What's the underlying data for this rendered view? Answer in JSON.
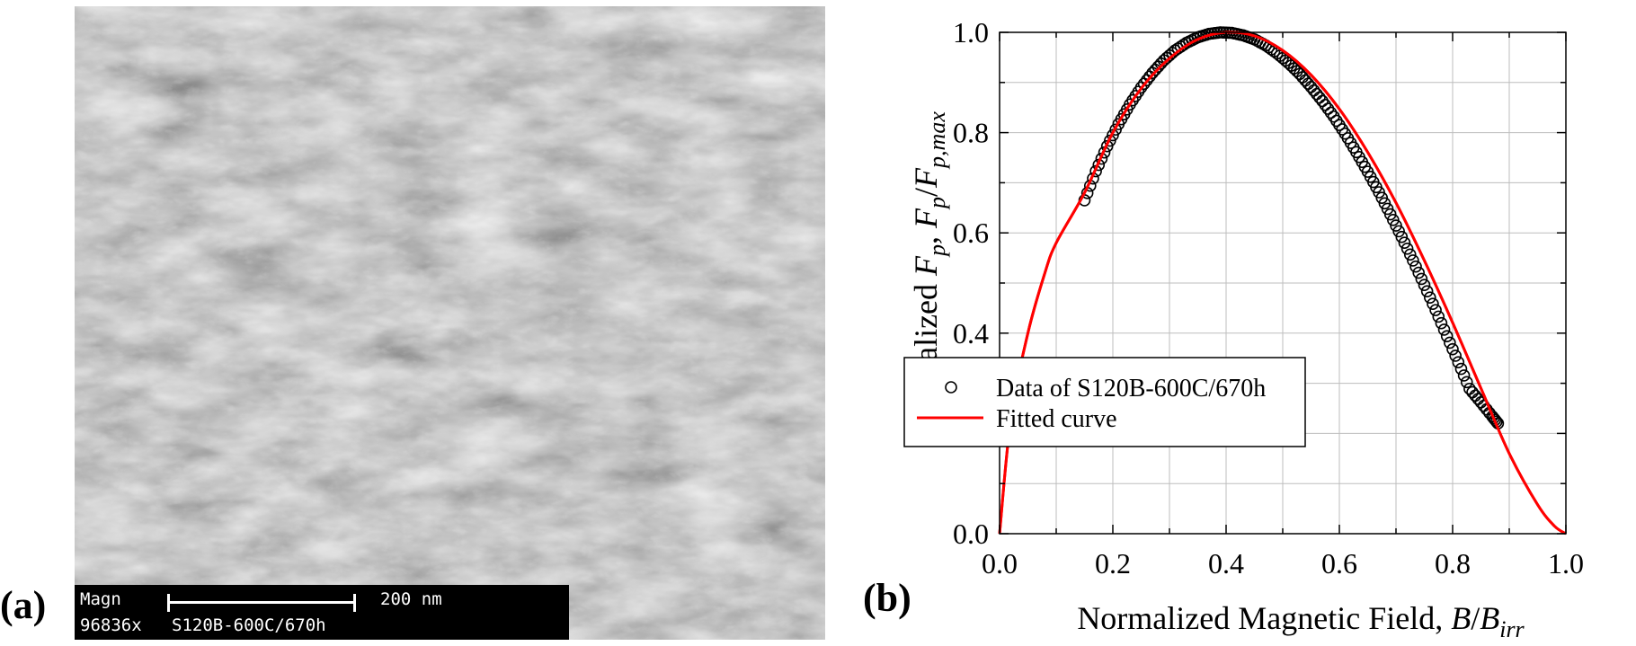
{
  "panel_a": {
    "label": "(a)",
    "info_bar": {
      "magn_label": "Magn",
      "magnification": "96836x",
      "sample_id": "S120B-600C/670h",
      "scale_text": "200 nm"
    }
  },
  "panel_b": {
    "label": "(b)"
  },
  "colors": {
    "fit_curve": "#ff0000",
    "markers": "#000000",
    "grid": "#bdbdbd"
  },
  "chart_data": {
    "type": "scatter",
    "xlabel": "Normalized Magnetic Field, B/B_irr",
    "ylabel": "Normalized F_p, F_p/F_p,max",
    "xlim": [
      0.0,
      1.0
    ],
    "ylim": [
      0.0,
      1.0
    ],
    "xticks": [
      "0.0",
      "0.2",
      "0.4",
      "0.6",
      "0.8",
      "1.0"
    ],
    "yticks": [
      "0.0",
      "0.2",
      "0.4",
      "0.6",
      "0.8",
      "1.0"
    ],
    "grid": true,
    "legend_placement": "bottom-center",
    "series": [
      {
        "name": "Data of S120B-600C/670h",
        "kind": "scatter",
        "marker": "open-circle",
        "x": [
          0.15,
          0.17,
          0.19,
          0.21,
          0.23,
          0.25,
          0.27,
          0.29,
          0.31,
          0.33,
          0.35,
          0.37,
          0.39,
          0.41,
          0.43,
          0.45,
          0.47,
          0.49,
          0.51,
          0.53,
          0.55,
          0.57,
          0.59,
          0.61,
          0.63,
          0.65,
          0.67,
          0.69,
          0.71,
          0.73,
          0.75,
          0.77,
          0.79,
          0.81,
          0.83,
          0.85,
          0.87,
          0.88
        ],
        "y": [
          0.665,
          0.723,
          0.773,
          0.817,
          0.856,
          0.89,
          0.919,
          0.944,
          0.964,
          0.979,
          0.99,
          0.997,
          1.0,
          0.999,
          0.994,
          0.986,
          0.974,
          0.958,
          0.939,
          0.917,
          0.891,
          0.863,
          0.832,
          0.798,
          0.761,
          0.722,
          0.681,
          0.637,
          0.592,
          0.545,
          0.496,
          0.446,
          0.394,
          0.342,
          0.289,
          0.262,
          0.234,
          0.22
        ]
      },
      {
        "name": "Fitted curve",
        "kind": "line",
        "x": [
          0.0,
          0.02,
          0.05,
          0.08,
          0.1,
          0.15,
          0.2,
          0.25,
          0.3,
          0.35,
          0.4,
          0.45,
          0.5,
          0.55,
          0.6,
          0.65,
          0.7,
          0.75,
          0.8,
          0.85,
          0.9,
          0.95,
          0.98,
          1.0
        ],
        "y": [
          0.0,
          0.23,
          0.4,
          0.52,
          0.58,
          0.68,
          0.8,
          0.888,
          0.948,
          0.986,
          1.0,
          0.993,
          0.964,
          0.915,
          0.847,
          0.761,
          0.66,
          0.545,
          0.421,
          0.29,
          0.16,
          0.058,
          0.015,
          0.0
        ]
      }
    ]
  }
}
